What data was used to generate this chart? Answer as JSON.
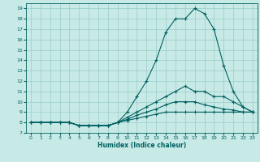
{
  "title": "",
  "xlabel": "Humidex (Indice chaleur)",
  "background_color": "#c8eae6",
  "grid_color": "#a0d0cc",
  "line_color": "#006060",
  "xlim": [
    -0.5,
    23.5
  ],
  "ylim": [
    7,
    19.5
  ],
  "xticks": [
    0,
    1,
    2,
    3,
    4,
    5,
    6,
    7,
    8,
    9,
    10,
    11,
    12,
    13,
    14,
    15,
    16,
    17,
    18,
    19,
    20,
    21,
    22,
    23
  ],
  "yticks": [
    7,
    8,
    9,
    10,
    11,
    12,
    13,
    14,
    15,
    16,
    17,
    18,
    19
  ],
  "lines": [
    {
      "x": [
        0,
        1,
        2,
        3,
        4,
        5,
        6,
        7,
        8,
        9,
        10,
        11,
        12,
        13,
        14,
        15,
        16,
        17,
        18,
        19,
        20,
        21,
        22,
        23
      ],
      "y": [
        8,
        8,
        8,
        8,
        8,
        7.7,
        7.7,
        7.7,
        7.7,
        8,
        9,
        10.5,
        12,
        14,
        16.7,
        18,
        18,
        19,
        18.5,
        17,
        13.5,
        11,
        9.5,
        9
      ]
    },
    {
      "x": [
        0,
        1,
        2,
        3,
        4,
        5,
        6,
        7,
        8,
        9,
        10,
        11,
        12,
        13,
        14,
        15,
        16,
        17,
        18,
        19,
        20,
        21,
        22,
        23
      ],
      "y": [
        8,
        8,
        8,
        8,
        8,
        7.7,
        7.7,
        7.7,
        7.7,
        8,
        8.5,
        9,
        9.5,
        10,
        10.5,
        11,
        11.5,
        11,
        11,
        10.5,
        10.5,
        10,
        9.5,
        9
      ]
    },
    {
      "x": [
        0,
        1,
        2,
        3,
        4,
        5,
        6,
        7,
        8,
        9,
        10,
        11,
        12,
        13,
        14,
        15,
        16,
        17,
        18,
        19,
        20,
        21,
        22,
        23
      ],
      "y": [
        8,
        8,
        8,
        8,
        8,
        7.7,
        7.7,
        7.7,
        7.7,
        8,
        8.3,
        8.7,
        9,
        9.3,
        9.7,
        10,
        10,
        10,
        9.7,
        9.5,
        9.3,
        9.2,
        9,
        9
      ]
    },
    {
      "x": [
        0,
        1,
        2,
        3,
        4,
        5,
        6,
        7,
        8,
        9,
        10,
        11,
        12,
        13,
        14,
        15,
        16,
        17,
        18,
        19,
        20,
        21,
        22,
        23
      ],
      "y": [
        8,
        8,
        8,
        8,
        8,
        7.7,
        7.7,
        7.7,
        7.7,
        8,
        8.2,
        8.4,
        8.6,
        8.8,
        9,
        9,
        9,
        9,
        9,
        9,
        9,
        9,
        9,
        9
      ]
    }
  ]
}
